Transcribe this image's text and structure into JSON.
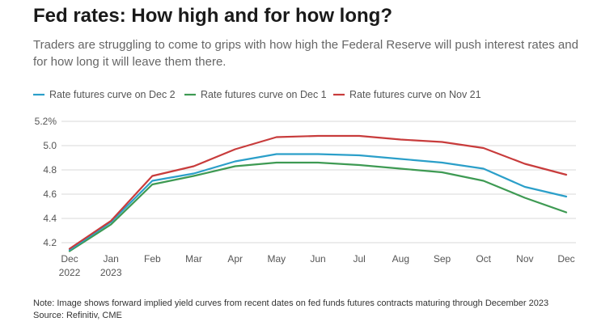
{
  "title": "Fed rates: How high and for how long?",
  "subtitle": "Traders are struggling to come to grips with how high the Federal Reserve will push interest rates and for how long it will leave them there.",
  "note": "Note: Image shows forward implied yield curves from recent dates on fed funds futures contracts maturing through December 2023",
  "source": "Source: Refinitiv, CME",
  "chart_data": {
    "type": "line",
    "categories": [
      "Dec 2022",
      "Jan 2023",
      "Feb",
      "Mar",
      "Apr",
      "May",
      "Jun",
      "Jul",
      "Aug",
      "Sep",
      "Oct",
      "Nov",
      "Dec"
    ],
    "x_tick_labels": [
      [
        "Dec",
        "2022"
      ],
      [
        "Jan",
        "2023"
      ],
      [
        "Feb"
      ],
      [
        "Mar"
      ],
      [
        "Apr"
      ],
      [
        "May"
      ],
      [
        "Jun"
      ],
      [
        "Jul"
      ],
      [
        "Aug"
      ],
      [
        "Sep"
      ],
      [
        "Oct"
      ],
      [
        "Nov"
      ],
      [
        "Dec"
      ]
    ],
    "y_ticks": [
      4.2,
      4.4,
      4.6,
      4.8,
      5.0,
      5.2
    ],
    "y_tick_labels": [
      "4.2",
      "4.4",
      "4.6",
      "4.8",
      "5.0",
      "5.2%"
    ],
    "ylim": [
      4.1,
      5.22
    ],
    "grid": true,
    "legend_position": "top-left",
    "series": [
      {
        "name": "Rate futures curve on Dec 2",
        "color": "#2b9fc9",
        "values": [
          4.14,
          4.37,
          4.71,
          4.77,
          4.87,
          4.93,
          4.93,
          4.92,
          4.89,
          4.86,
          4.81,
          4.66,
          4.58
        ]
      },
      {
        "name": "Rate futures curve on Dec 1",
        "color": "#3e9a53",
        "values": [
          4.13,
          4.35,
          4.68,
          4.75,
          4.83,
          4.86,
          4.86,
          4.84,
          4.81,
          4.78,
          4.71,
          4.57,
          4.45
        ]
      },
      {
        "name": "Rate futures curve on Nov 21",
        "color": "#c83c3c",
        "values": [
          4.15,
          4.38,
          4.75,
          4.83,
          4.97,
          5.07,
          5.08,
          5.08,
          5.05,
          5.03,
          4.98,
          4.85,
          4.76
        ]
      }
    ]
  }
}
